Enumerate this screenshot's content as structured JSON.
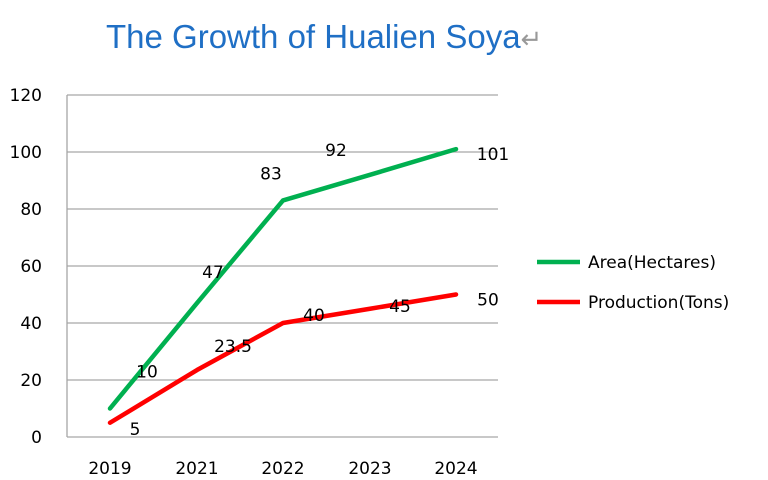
{
  "chart_data": {
    "type": "line",
    "title": "The Growth of Hualien Soya",
    "title_mark": "↵",
    "categories": [
      "2019",
      "2021",
      "2022",
      "2023",
      "2024"
    ],
    "series": [
      {
        "name": "Area(Hectares)",
        "color": "#00b050",
        "values": [
          10,
          47,
          83,
          92,
          101
        ],
        "labels": [
          "10",
          "47",
          "83",
          "92",
          "101"
        ]
      },
      {
        "name": "Production(Tons)",
        "color": "#ff0000",
        "values": [
          5,
          23.5,
          40,
          45,
          50
        ],
        "labels": [
          "5",
          "23.5",
          "40",
          "45",
          "50"
        ]
      }
    ],
    "yticks": [
      "0",
      "20",
      "40",
      "60",
      "80",
      "100",
      "120"
    ],
    "ylim": [
      0,
      120
    ],
    "xlabel": "",
    "ylabel": "",
    "grid": true,
    "legend": "right"
  }
}
